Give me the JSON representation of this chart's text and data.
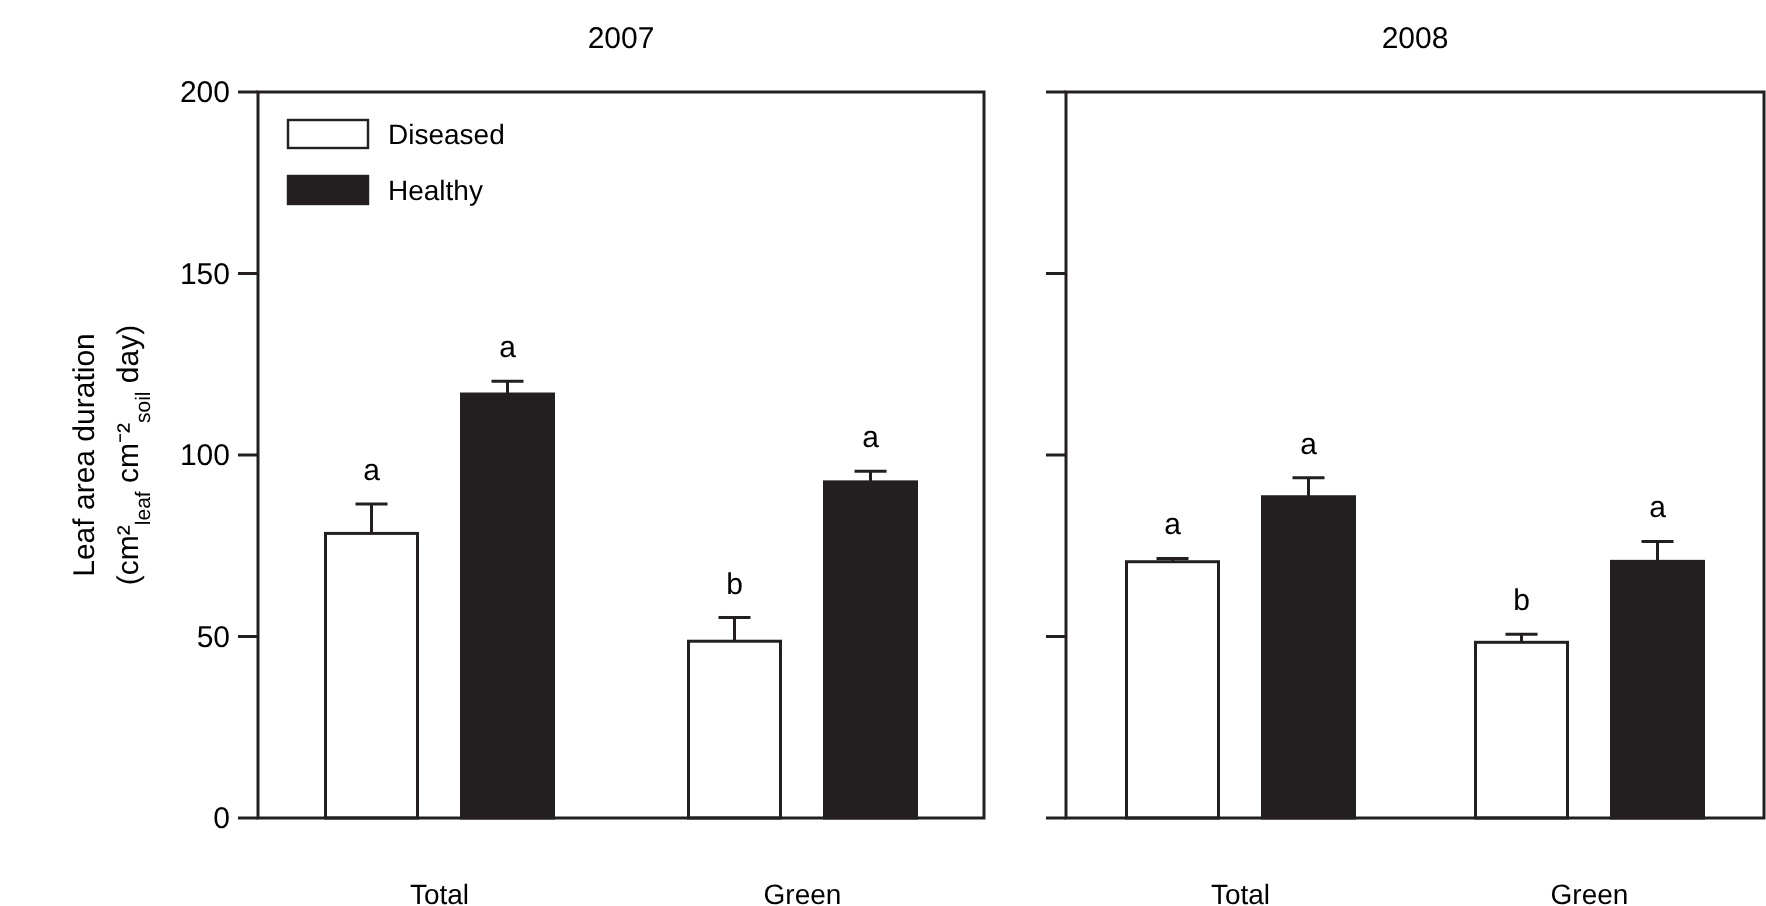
{
  "chart_data": [
    {
      "type": "bar",
      "title": "2007",
      "ylabel": "Leaf area duration\n(cm²$_{leaf}$ cm⁻²$_{soil}$ day)",
      "categories": [
        "Total",
        "Green"
      ],
      "series": [
        {
          "name": "Diseased",
          "color": "#ffffff",
          "values": [
            78.4,
            48.7
          ],
          "errors": [
            [
              78.4,
              86.5
            ],
            [
              48.7,
              55.2
            ]
          ]
        },
        {
          "name": "Healthy",
          "color": "#231f20",
          "values": [
            116.8,
            92.6
          ],
          "errors": [
            [
              116.8,
              120.3
            ],
            [
              92.6,
              95.5
            ]
          ]
        }
      ],
      "ylim": [
        0,
        200
      ],
      "yticks": [
        0,
        50,
        100,
        150,
        200
      ],
      "legend": "top left",
      "grid": false,
      "annotations": [
        "a",
        "a",
        "b",
        "a"
      ]
    },
    {
      "type": "bar",
      "title": "2008",
      "categories": [
        "Total",
        "Green"
      ],
      "series": [
        {
          "color": "#ffffff",
          "values": [
            70.6,
            48.4
          ],
          "errors": [
            [
              70.6,
              71.5
            ],
            [
              48.4,
              50.6
            ]
          ]
        },
        {
          "color": "#231f20",
          "values": [
            88.5,
            70.7
          ],
          "errors": [
            [
              88.5,
              93.7
            ],
            [
              70.7,
              76.2
            ]
          ]
        }
      ],
      "ylim": [
        0,
        200
      ],
      "yticks": [
        0,
        50,
        100,
        150,
        200
      ],
      "tick_labels": "x",
      "grid": false,
      "annotations": [
        "a",
        "a",
        "b",
        "a"
      ]
    }
  ]
}
